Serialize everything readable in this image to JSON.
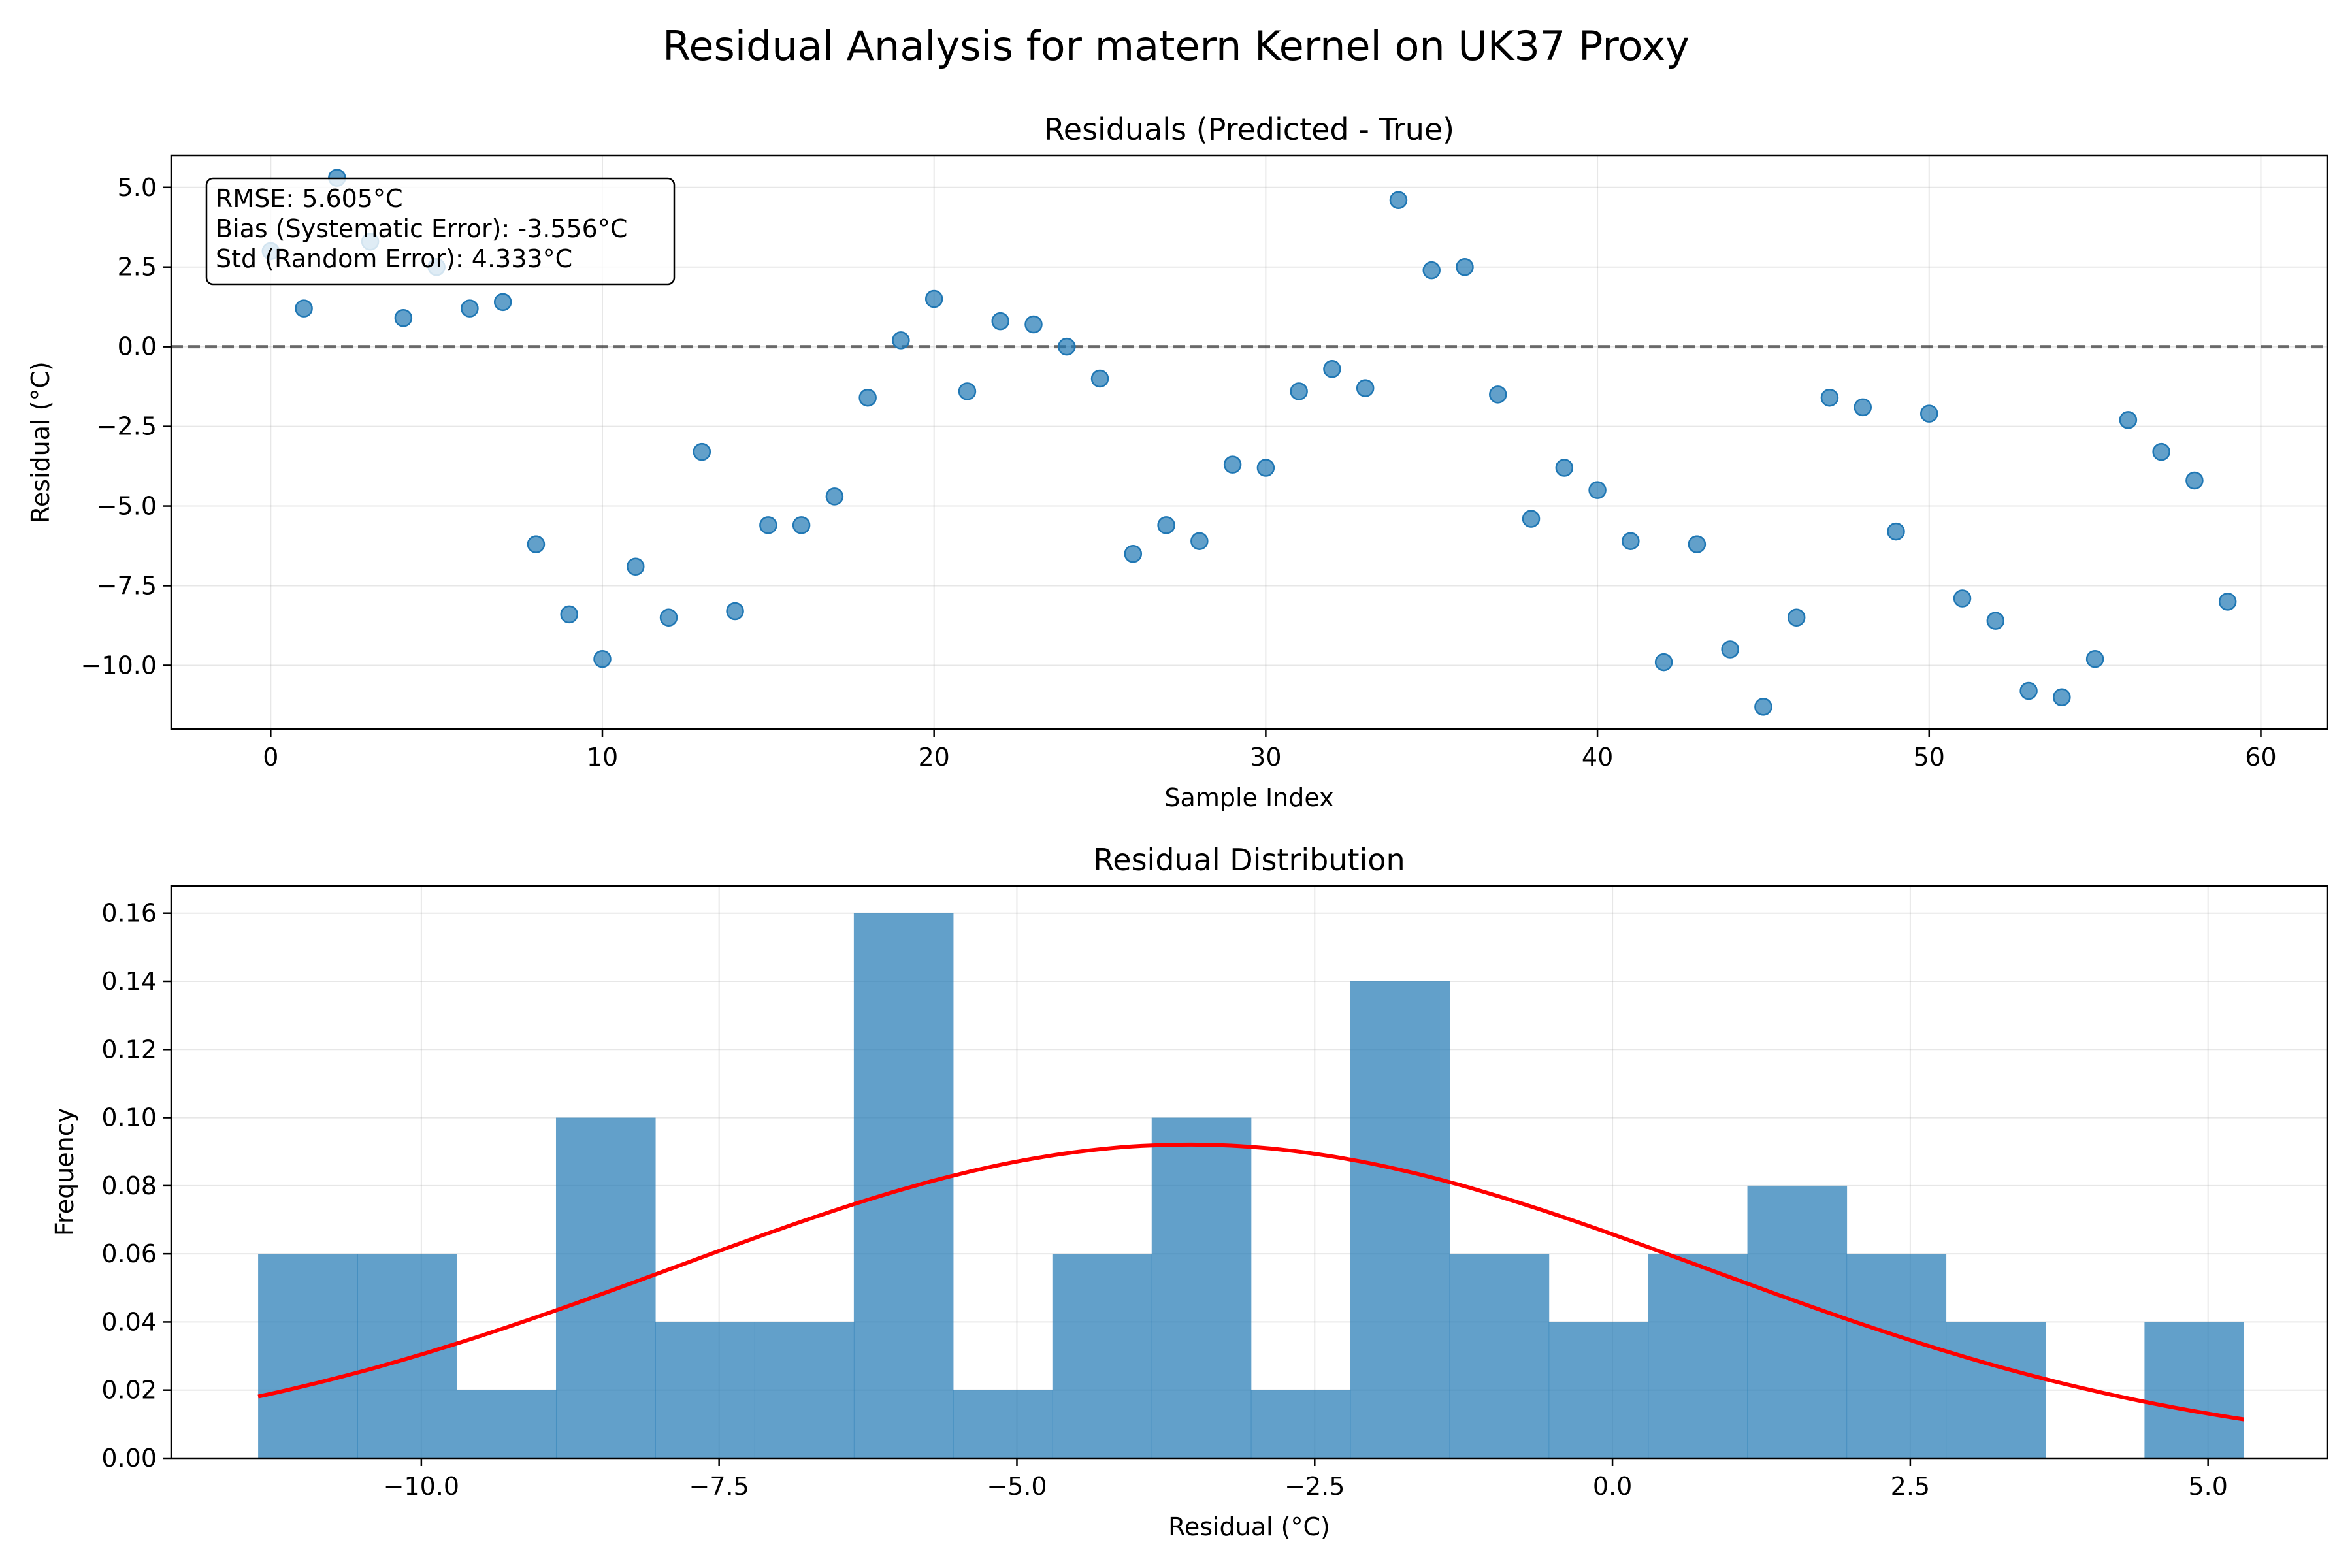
{
  "figure": {
    "suptitle": "Residual Analysis for matern Kernel on UK37 Proxy"
  },
  "chart_data": [
    {
      "type": "scatter",
      "title": "Residuals (Predicted - True)",
      "xlabel": "Sample Index",
      "ylabel": "Residual (°C)",
      "xlim": [
        -3,
        62
      ],
      "ylim": [
        -12.0,
        6.0
      ],
      "xticks": [
        0,
        10,
        20,
        30,
        40,
        50,
        60
      ],
      "xtick_labels": [
        "0",
        "10",
        "20",
        "30",
        "40",
        "50",
        "60"
      ],
      "yticks": [
        5.0,
        2.5,
        0.0,
        -2.5,
        -5.0,
        -7.5,
        -10.0
      ],
      "ytick_labels": [
        "5.0",
        "2.5",
        "0.0",
        "−2.5",
        "−5.0",
        "−7.5",
        "−10.0"
      ],
      "grid": true,
      "reference_line": {
        "y": 0,
        "style": "dashed"
      },
      "point_color": "#1f77b4",
      "x": [
        0,
        1,
        2,
        3,
        4,
        5,
        6,
        7,
        8,
        9,
        10,
        11,
        12,
        13,
        14,
        15,
        16,
        17,
        18,
        19,
        20,
        21,
        22,
        23,
        24,
        25,
        26,
        27,
        28,
        29,
        30,
        31,
        32,
        33,
        34,
        35,
        36,
        37,
        38,
        39,
        40,
        41,
        42,
        43,
        44,
        45,
        46,
        47,
        48,
        49,
        50,
        51,
        52,
        53,
        54,
        55,
        56,
        57,
        58,
        59
      ],
      "y": [
        3.0,
        1.2,
        5.3,
        3.3,
        0.9,
        2.5,
        1.2,
        1.4,
        -6.2,
        -8.4,
        -9.8,
        -6.9,
        -8.5,
        -3.3,
        -8.3,
        -5.6,
        -5.6,
        -4.7,
        -1.6,
        0.2,
        1.5,
        -1.4,
        0.8,
        0.7,
        0.0,
        -1.0,
        -6.5,
        -5.6,
        -6.1,
        -3.7,
        -3.8,
        -1.4,
        -0.7,
        -1.3,
        4.6,
        2.4,
        2.5,
        -1.5,
        -5.4,
        -3.8,
        -4.5,
        -6.1,
        -9.9,
        -6.2,
        -9.5,
        -11.3,
        -8.5,
        -1.6,
        -1.9,
        -5.8,
        -2.1,
        -7.9,
        -8.6,
        -10.8,
        -11.0,
        -9.8,
        -2.3,
        -3.3,
        -4.2,
        -8.0
      ],
      "annotation": {
        "lines": [
          "RMSE: 5.605°C",
          "Bias (Systematic Error): -3.556°C",
          "Std (Random Error): 4.333°C"
        ],
        "placement": "top-left"
      }
    },
    {
      "type": "bar",
      "subtype": "histogram",
      "title": "Residual Distribution",
      "xlabel": "Residual (°C)",
      "ylabel": "Frequency",
      "xlim": [
        -12.1,
        6.0
      ],
      "ylim": [
        0,
        0.168
      ],
      "xticks": [
        -10.0,
        -7.5,
        -5.0,
        -2.5,
        0.0,
        2.5,
        5.0
      ],
      "xtick_labels": [
        "−10.0",
        "−7.5",
        "−5.0",
        "−2.5",
        "0.0",
        "2.5",
        "5.0"
      ],
      "yticks": [
        0.0,
        0.02,
        0.04,
        0.06,
        0.08,
        0.1,
        0.12,
        0.14,
        0.16
      ],
      "ytick_labels": [
        "0.00",
        "0.02",
        "0.04",
        "0.06",
        "0.08",
        "0.10",
        "0.12",
        "0.14",
        "0.16"
      ],
      "grid": true,
      "bar_color": "#1f77b4",
      "bin_start": -11.37,
      "bin_width": 0.8335,
      "values": [
        0.06,
        0.06,
        0.02,
        0.1,
        0.04,
        0.04,
        0.16,
        0.02,
        0.06,
        0.1,
        0.02,
        0.14,
        0.06,
        0.04,
        0.06,
        0.08,
        0.06,
        0.04,
        0.0,
        0.04
      ],
      "curve": {
        "type": "normal-pdf",
        "mean": -3.556,
        "std": 4.333,
        "color": "#ff0000"
      }
    }
  ]
}
